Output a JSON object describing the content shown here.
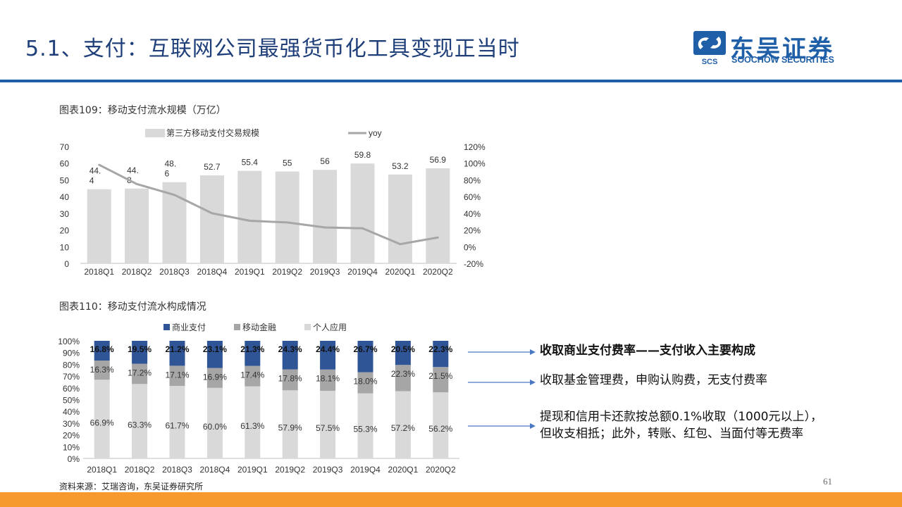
{
  "page": {
    "title": "5.1、支付：互联网公司最强货币化工具变现正当时",
    "page_number": "61",
    "source": "资料来源：艾瑞咨询，东吴证券研究所"
  },
  "logo": {
    "cn": "东吴证券",
    "en": "SOOCHOW SECURITIES",
    "mark": "SCS"
  },
  "colors": {
    "title": "#1f3f7a",
    "rule": "#1f5fa8",
    "bottom_bar": "#f79a2e",
    "bar_gray": "#d9d9d9",
    "line_gray": "#a6a6a6",
    "commercial": "#2f5597",
    "finance": "#a6a6a6",
    "personal": "#d9d9d9"
  },
  "chart1_caption": "图表109：移动支付流水规模（万亿）",
  "chart2_caption": "图表110：移动支付流水构成情况",
  "notes": [
    {
      "text": "收取商业支付费率——支付收入主要构成"
    },
    {
      "text": "收取基金管理费，申购认购费，无支付费率"
    },
    {
      "text": "提现和信用卡还款按总额0.1%收取（1000元以上），"
    },
    {
      "text": "但收支相抵；此外，转账、红包、当面付等无费率"
    }
  ],
  "chart_data": [
    {
      "type": "bar",
      "title": "图表109：移动支付流水规模（万亿）",
      "categories": [
        "2018Q1",
        "2018Q2",
        "2018Q3",
        "2018Q4",
        "2019Q1",
        "2019Q2",
        "2019Q3",
        "2019Q4",
        "2020Q1",
        "2020Q2"
      ],
      "series": [
        {
          "name": "第三方移动支付交易规模",
          "type": "bar",
          "axis": "left",
          "values": [
            44.4,
            44.8,
            48.6,
            52.7,
            55.4,
            55,
            56,
            59.8,
            53.2,
            56.9
          ],
          "labels": [
            "44.\n4",
            "44.\n8",
            "48.\n6",
            "52.7",
            "55.4",
            "55",
            "56",
            "59.8",
            "53.2",
            "56.9"
          ]
        },
        {
          "name": "yoy",
          "type": "line",
          "axis": "right",
          "values": [
            0.98,
            0.75,
            0.62,
            0.4,
            0.31,
            0.29,
            0.23,
            0.22,
            0.03,
            0.11
          ]
        }
      ],
      "yleft": {
        "ticks": [
          "0",
          "10",
          "20",
          "30",
          "40",
          "50",
          "60",
          "70"
        ],
        "lim": [
          0,
          70
        ]
      },
      "yright": {
        "ticks": [
          "-20%",
          "0%",
          "20%",
          "40%",
          "60%",
          "80%",
          "100%",
          "120%"
        ],
        "lim": [
          -0.2,
          1.2
        ]
      },
      "legend": "top"
    },
    {
      "type": "bar",
      "stacked": true,
      "title": "图表110：移动支付流水构成情况",
      "categories": [
        "2018Q1",
        "2018Q2",
        "2018Q3",
        "2018Q4",
        "2019Q1",
        "2019Q2",
        "2019Q3",
        "2019Q4",
        "2020Q1",
        "2020Q2"
      ],
      "series": [
        {
          "name": "个人应用",
          "values": [
            66.9,
            63.3,
            61.7,
            60.0,
            61.3,
            57.9,
            57.5,
            55.3,
            57.2,
            56.2
          ],
          "labels": [
            "66.9%",
            "63.3%",
            "61.7%",
            "60.0%",
            "61.3%",
            "57.9%",
            "57.5%",
            "55.3%",
            "57.2%",
            "56.2%"
          ]
        },
        {
          "name": "移动金融",
          "values": [
            16.3,
            17.2,
            17.1,
            16.9,
            17.4,
            17.8,
            18.1,
            18.0,
            22.3,
            21.5
          ],
          "labels": [
            "16.3%",
            "17.2%",
            "17.1%",
            "16.9%",
            "17.4%",
            "17.8%",
            "18.1%",
            "18.0%",
            "22.3%",
            "21.5%"
          ]
        },
        {
          "name": "商业支付",
          "values": [
            16.8,
            19.5,
            21.2,
            23.1,
            21.3,
            24.3,
            24.4,
            26.7,
            20.5,
            22.3
          ],
          "labels": [
            "16.8%",
            "19.5%",
            "21.2%",
            "23.1%",
            "21.3%",
            "24.3%",
            "24.4%",
            "26.7%",
            "20.5%",
            "22.3%"
          ]
        }
      ],
      "yticks": [
        "0%",
        "10%",
        "20%",
        "30%",
        "40%",
        "50%",
        "60%",
        "70%",
        "80%",
        "90%",
        "100%"
      ],
      "ylim": [
        0,
        100
      ],
      "legend": "top"
    }
  ]
}
